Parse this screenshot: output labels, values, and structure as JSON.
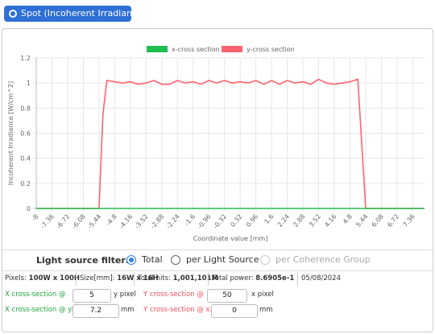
{
  "button": {
    "label": "Spot (Incoherent Irradiance)"
  },
  "chart_data": {
    "type": "line",
    "y_label": "Incoherent Irradiance [W/cm^2]",
    "x_label": "Coordinate value [mm]",
    "x": [
      -8,
      -5.44,
      -5.28,
      -5.12,
      -4.8,
      -4.48,
      -4.16,
      -3.84,
      -3.52,
      -3.2,
      -2.88,
      -2.56,
      -2.24,
      -1.92,
      -1.6,
      -1.28,
      -0.96,
      -0.64,
      -0.32,
      0,
      0.32,
      0.64,
      0.96,
      1.28,
      1.6,
      1.92,
      2.24,
      2.56,
      2.88,
      3.2,
      3.52,
      3.84,
      4.16,
      4.48,
      4.8,
      5.12,
      5.44,
      7.84
    ],
    "series": [
      {
        "name": "y-cross section",
        "color": "#ff6370",
        "values": [
          0,
          0,
          0.75,
          1.02,
          1.01,
          1.0,
          1.01,
          0.99,
          1.0,
          1.02,
          0.99,
          0.99,
          1.02,
          1.0,
          1.01,
          0.99,
          1.02,
          1.0,
          1.02,
          1.0,
          1.01,
          1.0,
          1.02,
          0.99,
          1.02,
          0.99,
          1.02,
          1.0,
          1.01,
          0.99,
          1.03,
          1.0,
          0.99,
          1.0,
          1.01,
          1.03,
          0,
          0
        ]
      },
      {
        "name": "x-cross section",
        "color": "#1fbf4f",
        "values": [
          0,
          0,
          0,
          0,
          0,
          0,
          0,
          0,
          0,
          0,
          0,
          0,
          0,
          0,
          0,
          0,
          0,
          0,
          0,
          0,
          0,
          0,
          0,
          0,
          0,
          0,
          0,
          0,
          0,
          0,
          0,
          0,
          0,
          0,
          0,
          0,
          0,
          0
        ]
      }
    ],
    "legend_order": [
      1,
      0
    ],
    "xlim": [
      -8,
      7.84
    ],
    "ylim": [
      0,
      1.2
    ],
    "xticks": [
      -8,
      -7.36,
      -6.72,
      -6.08,
      -5.44,
      -4.8,
      -4.16,
      -3.52,
      -2.88,
      -2.24,
      -1.6,
      -0.96,
      -0.32,
      0.32,
      0.96,
      1.6,
      2.24,
      2.88,
      3.52,
      4.16,
      4.8,
      5.44,
      6.08,
      6.72,
      7.36
    ],
    "yticks": [
      0,
      0.2,
      0.4,
      0.6,
      0.8,
      1,
      1.2
    ],
    "grid": true,
    "legend": "top"
  },
  "filter": {
    "label": "Light source filter:",
    "options": [
      {
        "label": "Total",
        "selected": true,
        "disabled": false
      },
      {
        "label": "per Light Source",
        "selected": false,
        "disabled": false
      },
      {
        "label": "per Coherence Group",
        "selected": false,
        "disabled": true
      }
    ]
  },
  "info": [
    {
      "label": "Pixels:",
      "value": "100W x 100H"
    },
    {
      "label": "Size[mm]:",
      "value": "16W x 16H"
    },
    {
      "label": "Total hits:",
      "value": "1,001,101M"
    },
    {
      "label": "Total power:",
      "value": "8.6905e-1"
    },
    {
      "value": "05/08/2024"
    }
  ],
  "cross_sections": [
    {
      "label": "X cross-section @",
      "value": "5",
      "unit": "y pixel",
      "color": "#22a33a"
    },
    {
      "label": "Y cross-section @",
      "value": "50",
      "unit": "x pixel",
      "color": "#f0505a"
    },
    {
      "label": "X cross-section @ y:",
      "value": "7.2",
      "unit": "mm",
      "color": "#22a33a"
    },
    {
      "label": "Y cross-section @ x:",
      "value": "0",
      "unit": "mm",
      "color": "#f0505a"
    }
  ]
}
